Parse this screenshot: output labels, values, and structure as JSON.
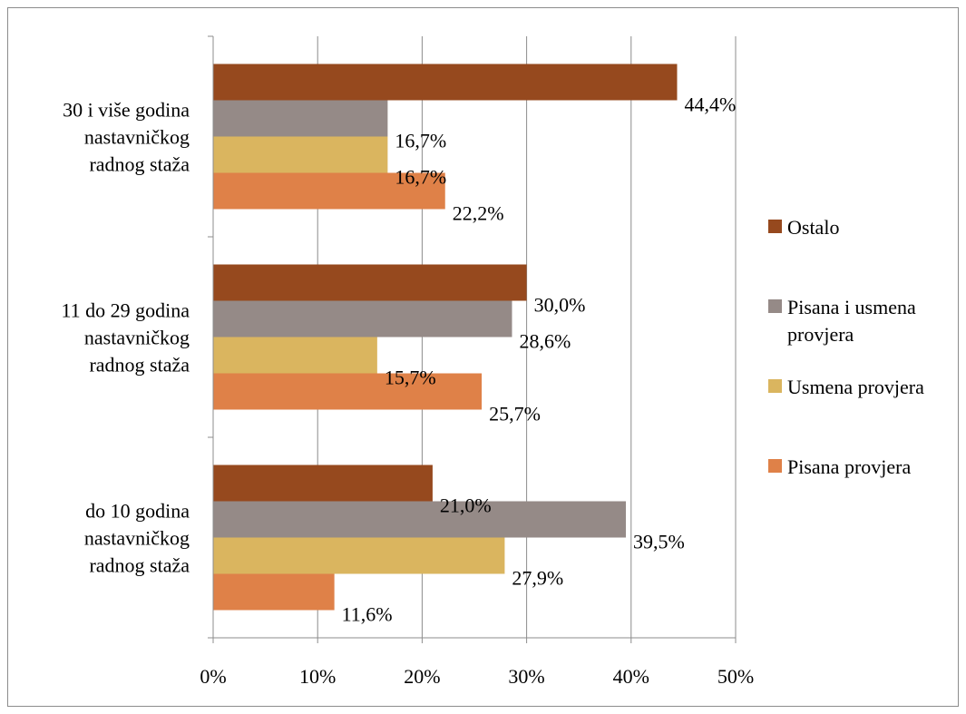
{
  "chart_data": {
    "type": "bar",
    "orientation": "horizontal",
    "title": "",
    "xlabel": "",
    "ylabel": "",
    "xlim": [
      0,
      50
    ],
    "x_ticks": [
      0,
      10,
      20,
      30,
      40,
      50
    ],
    "x_tick_labels": [
      "0%",
      "10%",
      "20%",
      "30%",
      "40%",
      "50%"
    ],
    "grid": true,
    "legend_position": "right",
    "categories": [
      {
        "lines": [
          "30 i više godina",
          "nastavničkog",
          "radnog staža"
        ]
      },
      {
        "lines": [
          "11 do 29 godina",
          "nastavničkog",
          "radnog staža"
        ]
      },
      {
        "lines": [
          "do 10 godina",
          "nastavničkog",
          "radnog staža"
        ]
      }
    ],
    "series": [
      {
        "name": "Ostalo",
        "legend_lines": [
          "Ostalo"
        ],
        "color": "#96491e",
        "values": [
          44.4,
          30.0,
          21.0
        ],
        "labels": [
          "44,4%",
          "30,0%",
          "21,0%"
        ]
      },
      {
        "name": "Pisana i usmena provjera",
        "legend_lines": [
          "Pisana i usmena",
          "provjera"
        ],
        "color": "#958a87",
        "values": [
          16.7,
          28.6,
          39.5
        ],
        "labels": [
          "16,7%",
          "28,6%",
          "39,5%"
        ]
      },
      {
        "name": "Usmena provjera",
        "legend_lines": [
          "Usmena provjera"
        ],
        "color": "#dab55f",
        "values": [
          16.7,
          15.7,
          27.9
        ],
        "labels": [
          "16,7%",
          "15,7%",
          "27,9%"
        ]
      },
      {
        "name": "Pisana provjera",
        "legend_lines": [
          "Pisana provjera"
        ],
        "color": "#df8148",
        "values": [
          22.2,
          25.7,
          11.6
        ],
        "labels": [
          "22,2%",
          "25,7%",
          "11,6%"
        ]
      }
    ]
  }
}
